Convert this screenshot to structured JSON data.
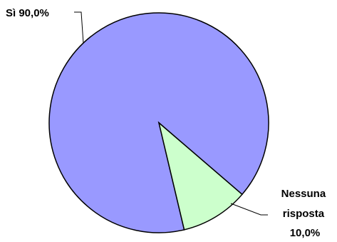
{
  "chart_data": {
    "type": "pie",
    "title": "",
    "slices": [
      {
        "name": "Sì",
        "value": 90.0,
        "label_lines": [
          "Sì 90,0%"
        ],
        "color": "#9999ff"
      },
      {
        "name": "Nessuna risposta",
        "value": 10.0,
        "label_lines": [
          "Nessuna",
          "risposta",
          "10,0%"
        ],
        "color": "#ccffcc"
      }
    ],
    "legend": "none",
    "outline_color": "#000000"
  }
}
